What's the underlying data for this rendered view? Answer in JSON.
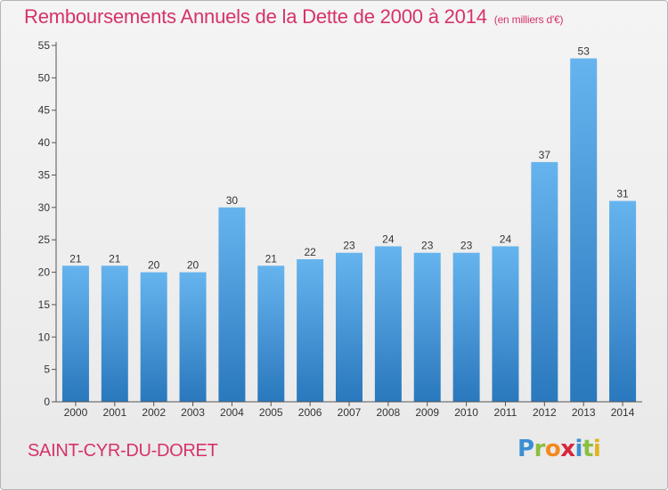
{
  "title": "Remboursements Annuels de la Dette de 2000 à 2014",
  "subtitle": "(en milliers d'€)",
  "commune": "SAINT-CYR-DU-DORET",
  "logo": {
    "letters": [
      "P",
      "r",
      "o",
      "x",
      "i",
      "t",
      "i"
    ],
    "colors": [
      "#3a8fd4",
      "#8cbf3f",
      "#f28a1f",
      "#d8263d",
      "#3a8fd4",
      "#8cbf3f",
      "#e2b41d"
    ]
  },
  "chart_data": {
    "type": "bar",
    "categories": [
      "2000",
      "2001",
      "2002",
      "2003",
      "2004",
      "2005",
      "2006",
      "2007",
      "2008",
      "2009",
      "2010",
      "2011",
      "2012",
      "2013",
      "2014"
    ],
    "values": [
      21,
      21,
      20,
      20,
      30,
      21,
      22,
      23,
      24,
      23,
      23,
      24,
      37,
      53,
      31
    ],
    "data_labels": [
      "21",
      "21",
      "20",
      "20",
      "30",
      "21",
      "22",
      "23",
      "24",
      "23",
      "23",
      "24",
      "37",
      "53",
      "31"
    ],
    "y_ticks": [
      "0",
      "5",
      "10",
      "15",
      "20",
      "25",
      "30",
      "35",
      "40",
      "45",
      "50",
      "55"
    ],
    "ylim": [
      0,
      55
    ],
    "grid": false,
    "colors": {
      "bar_top": "#66b4ee",
      "bar_bottom": "#2a78bd",
      "axis": "#555555",
      "text": "#333333"
    }
  }
}
